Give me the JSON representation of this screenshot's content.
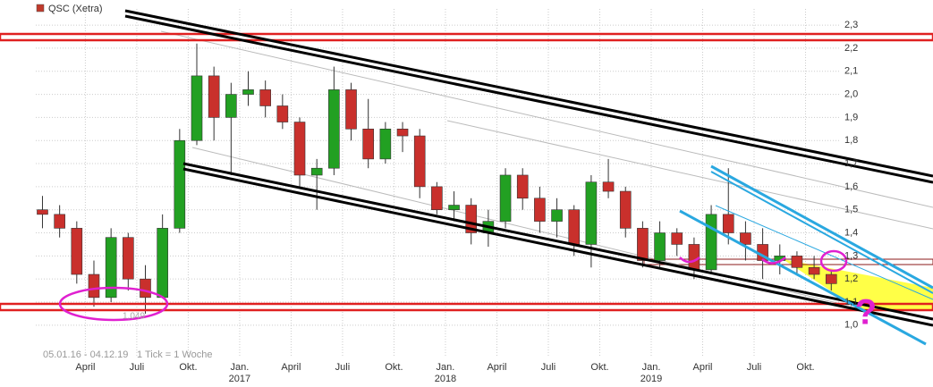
{
  "chart_data": {
    "type": "candlestick",
    "title": "QSC (Xetra)",
    "legend_color": "#c0392b",
    "range_text": "05.01.16 - 04.12.19",
    "tick_text": "1 Tick = 1 Woche",
    "low_label": "1,049",
    "annotation": "?",
    "up_color": "#22a022",
    "down_color": "#c9302c",
    "grid": true,
    "x": [
      0.5,
      1.5,
      2.5,
      3.5,
      4.5,
      5.5,
      6.5,
      7.5,
      8.5,
      9.5,
      10.5,
      11.5,
      12.5,
      13.5,
      14.5,
      15.5,
      16.5,
      17.5,
      18.5,
      19.5,
      20.5,
      21.5,
      22.5,
      23.5,
      24.5,
      25.5,
      26.5,
      27.5,
      28.5,
      29.5,
      30.5,
      31.5,
      32.5,
      33.5,
      34.5,
      35.5,
      36.5,
      37.5,
      38.5,
      39.5,
      40.5,
      41.5,
      42.5,
      43.5,
      44.5,
      45.5,
      46.5
    ],
    "open": [
      1.5,
      1.48,
      1.42,
      1.22,
      1.12,
      1.38,
      1.2,
      1.12,
      1.42,
      1.8,
      2.08,
      1.9,
      2.0,
      2.02,
      1.95,
      1.88,
      1.65,
      1.68,
      2.02,
      1.85,
      1.72,
      1.85,
      1.82,
      1.6,
      1.5,
      1.52,
      1.4,
      1.45,
      1.65,
      1.55,
      1.45,
      1.5,
      1.35,
      1.62,
      1.58,
      1.42,
      1.28,
      1.4,
      1.35,
      1.24,
      1.48,
      1.4,
      1.35,
      1.28,
      1.3,
      1.25,
      1.22
    ],
    "high": [
      1.56,
      1.52,
      1.45,
      1.28,
      1.42,
      1.4,
      1.26,
      1.48,
      1.85,
      2.22,
      2.12,
      2.05,
      2.1,
      2.06,
      2.0,
      1.9,
      1.72,
      2.12,
      2.05,
      1.98,
      1.88,
      1.88,
      1.85,
      1.62,
      1.58,
      1.55,
      1.5,
      1.68,
      1.68,
      1.6,
      1.55,
      1.52,
      1.65,
      1.72,
      1.6,
      1.45,
      1.45,
      1.42,
      1.38,
      1.52,
      1.68,
      1.45,
      1.42,
      1.35,
      1.32,
      1.3,
      1.24
    ],
    "low": [
      1.42,
      1.38,
      1.18,
      1.08,
      1.1,
      1.15,
      1.05,
      1.12,
      1.4,
      1.78,
      1.8,
      1.65,
      1.95,
      1.9,
      1.85,
      1.6,
      1.5,
      1.65,
      1.8,
      1.68,
      1.7,
      1.75,
      1.55,
      1.48,
      1.45,
      1.35,
      1.34,
      1.42,
      1.5,
      1.4,
      1.38,
      1.3,
      1.25,
      1.55,
      1.38,
      1.25,
      1.25,
      1.3,
      1.2,
      1.22,
      1.35,
      1.28,
      1.2,
      1.22,
      1.22,
      1.2,
      1.15
    ],
    "close": [
      1.48,
      1.42,
      1.22,
      1.12,
      1.38,
      1.2,
      1.12,
      1.42,
      1.8,
      2.08,
      1.9,
      2.0,
      2.02,
      1.95,
      1.88,
      1.65,
      1.68,
      2.02,
      1.85,
      1.72,
      1.85,
      1.82,
      1.6,
      1.5,
      1.52,
      1.4,
      1.45,
      1.65,
      1.55,
      1.45,
      1.5,
      1.35,
      1.62,
      1.58,
      1.42,
      1.28,
      1.4,
      1.35,
      1.24,
      1.48,
      1.4,
      1.35,
      1.28,
      1.3,
      1.25,
      1.22,
      1.18
    ],
    "xlim": [
      0.11,
      47.06
    ],
    "ylim": [
      0.86,
      2.37
    ],
    "yticks": [
      {
        "value": 1.0,
        "label": "1,0"
      },
      {
        "value": 1.1,
        "label": "1,1"
      },
      {
        "value": 1.2,
        "label": "1,2"
      },
      {
        "value": 1.3,
        "label": "1,3"
      },
      {
        "value": 1.4,
        "label": "1,4"
      },
      {
        "value": 1.5,
        "label": "1,5"
      },
      {
        "value": 1.6,
        "label": "1,6"
      },
      {
        "value": 1.7,
        "label": "1,7"
      },
      {
        "value": 1.8,
        "label": "1,8"
      },
      {
        "value": 1.9,
        "label": "1,9"
      },
      {
        "value": 2.0,
        "label": "2,0"
      },
      {
        "value": 2.1,
        "label": "2,1"
      },
      {
        "value": 2.2,
        "label": "2,2"
      },
      {
        "value": 2.3,
        "label": "2,3"
      }
    ],
    "xticks": [
      {
        "value": 3,
        "label": "April"
      },
      {
        "value": 6,
        "label": "Juli"
      },
      {
        "value": 9,
        "label": "Okt."
      },
      {
        "value": 12,
        "label": "Jan."
      },
      {
        "value": 15,
        "label": "April"
      },
      {
        "value": 18,
        "label": "Juli"
      },
      {
        "value": 21,
        "label": "Okt."
      },
      {
        "value": 24,
        "label": "Jan."
      },
      {
        "value": 27,
        "label": "April"
      },
      {
        "value": 30,
        "label": "Juli"
      },
      {
        "value": 33,
        "label": "Okt."
      },
      {
        "value": 36,
        "label": "Jan."
      },
      {
        "value": 39,
        "label": "April"
      },
      {
        "value": 42,
        "label": "Juli"
      },
      {
        "value": 45,
        "label": "Okt."
      }
    ],
    "year_ticks": [
      {
        "value": 12,
        "label": "2017"
      },
      {
        "value": 24,
        "label": "2018"
      },
      {
        "value": 36,
        "label": "2019"
      }
    ]
  }
}
